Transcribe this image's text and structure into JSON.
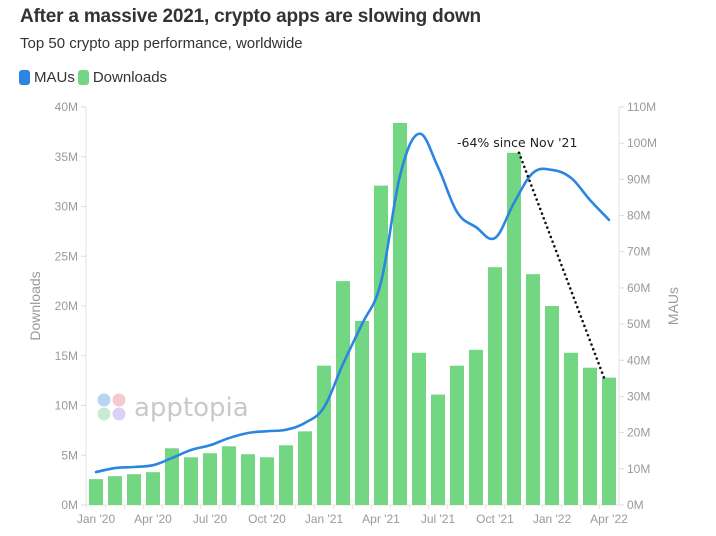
{
  "header": {
    "title": "After a massive 2021, crypto apps are slowing down",
    "subtitle": "Top 50 crypto app performance, worldwide"
  },
  "legend": [
    {
      "label": "MAUs",
      "color": "#2a86e0"
    },
    {
      "label": "Downloads",
      "color": "#73d683"
    }
  ],
  "watermark": "apptopia",
  "chart_data": {
    "type": "bar",
    "title": "After a massive 2021, crypto apps are slowing down",
    "subtitle": "Top 50 crypto app performance, worldwide",
    "xlabel": "",
    "ylabel": "Downloads",
    "y2label": "MAUs",
    "legend_position": "top-left",
    "grid": false,
    "months": [
      "Jan '20",
      "Feb '20",
      "Mar '20",
      "Apr '20",
      "May '20",
      "Jun '20",
      "Jul '20",
      "Aug '20",
      "Sep '20",
      "Oct '20",
      "Nov '20",
      "Dec '20",
      "Jan '21",
      "Feb '21",
      "Mar '21",
      "Apr '21",
      "May '21",
      "Jun '21",
      "Jul '21",
      "Aug '21",
      "Sep '21",
      "Oct '21",
      "Nov '21",
      "Dec '21",
      "Jan '22",
      "Feb '22",
      "Mar '22",
      "Apr '22"
    ],
    "x_tick_labels": [
      {
        "index": 0,
        "label": "Jan '20"
      },
      {
        "index": 3,
        "label": "Apr '20"
      },
      {
        "index": 6,
        "label": "Jul '20"
      },
      {
        "index": 9,
        "label": "Oct '20"
      },
      {
        "index": 12,
        "label": "Jan '21"
      },
      {
        "index": 15,
        "label": "Apr '21"
      },
      {
        "index": 18,
        "label": "Jul '21"
      },
      {
        "index": 21,
        "label": "Oct '21"
      },
      {
        "index": 24,
        "label": "Jan '22"
      },
      {
        "index": 27,
        "label": "Apr '22"
      }
    ],
    "y_left": {
      "min": 0,
      "max": 40,
      "step": 5,
      "unit": "M",
      "ticks": [
        "0M",
        "5M",
        "10M",
        "15M",
        "20M",
        "25M",
        "30M",
        "35M",
        "40M"
      ]
    },
    "y_right": {
      "min": 0,
      "max": 110,
      "step": 10,
      "unit": "M",
      "ticks": [
        "0M",
        "10M",
        "20M",
        "30M",
        "40M",
        "50M",
        "60M",
        "70M",
        "80M",
        "90M",
        "100M",
        "110M"
      ]
    },
    "series": [
      {
        "name": "Downloads",
        "type": "bar",
        "axis": "left",
        "color": "#73d683",
        "values": [
          2.6,
          2.9,
          3.1,
          3.3,
          5.7,
          4.8,
          5.2,
          5.9,
          5.1,
          4.8,
          6.0,
          7.4,
          14.0,
          22.5,
          18.5,
          32.1,
          38.4,
          15.3,
          11.1,
          14.0,
          15.6,
          23.9,
          35.4,
          23.2,
          20.0,
          15.3,
          13.8,
          12.8
        ]
      },
      {
        "name": "MAUs",
        "type": "line",
        "axis": "right",
        "color": "#2a86e0",
        "values": [
          9.1,
          10.2,
          10.5,
          11.0,
          13.0,
          15.2,
          16.5,
          18.5,
          19.9,
          20.4,
          20.8,
          22.7,
          27.0,
          39.0,
          50.0,
          61.6,
          91.0,
          102.6,
          93.4,
          81.0,
          76.8,
          73.8,
          83.5,
          91.8,
          92.6,
          90.4,
          84.3,
          78.8
        ]
      }
    ],
    "annotations": [
      {
        "text": "-64% since Nov '21",
        "style": "dotted-line",
        "from_index": 22,
        "from_value": 35.4,
        "to_index": 27,
        "to_value": 12.8,
        "axis": "left"
      }
    ]
  }
}
